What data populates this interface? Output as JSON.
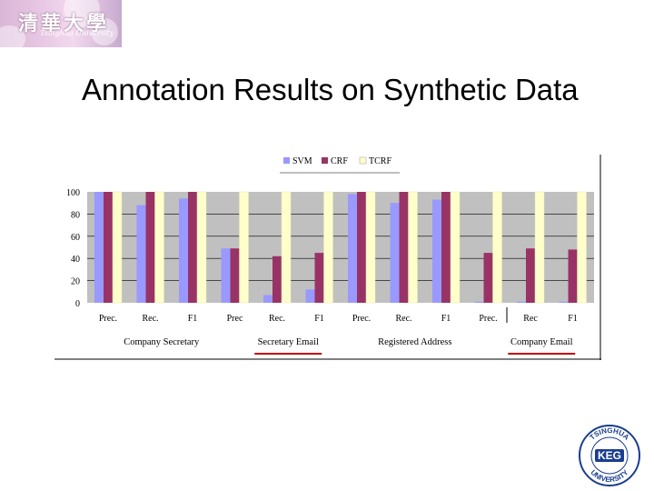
{
  "banner": {
    "name": "清華大學",
    "subtitle": "Tsinghua University"
  },
  "title": "Annotation Results on Synthetic Data",
  "logo": {
    "top_text": "TSINGHUA",
    "center_text": "KEG",
    "bottom_text": "UNIVERSITY"
  },
  "colors": {
    "svm": "#9999ff",
    "crf": "#993366",
    "tcrf": "#ffffcc",
    "plot_bg": "#c0c0c0",
    "underline": "#c00000"
  },
  "chart_data": {
    "type": "bar",
    "title": "",
    "xlabel": "",
    "ylabel": "",
    "ylim": [
      0,
      100
    ],
    "yticks": [
      "0",
      "20",
      "40",
      "60",
      "80",
      "100"
    ],
    "legend_position": "top-center",
    "categories": [
      "Prec.",
      "Rec.",
      "F1",
      "Prec",
      "Rec.",
      "F1",
      "Prec.",
      "Rec.",
      "F1",
      "Prec.",
      "Rec",
      "F1"
    ],
    "groups": [
      {
        "label": "Company  Secretary",
        "underlined": false
      },
      {
        "label": "Secretary  Email",
        "underlined": true
      },
      {
        "label": "Registered  Address",
        "underlined": false
      },
      {
        "label": "Company  Email",
        "underlined": true
      }
    ],
    "series": [
      {
        "name": "SVM",
        "values": [
          100,
          88,
          94,
          49,
          7,
          12,
          98,
          90,
          93,
          1,
          1,
          1
        ]
      },
      {
        "name": "CRF",
        "values": [
          100,
          100,
          100,
          49,
          42,
          45,
          100,
          100,
          100,
          45,
          49,
          48
        ]
      },
      {
        "name": "TCRF",
        "values": [
          100,
          100,
          100,
          100,
          100,
          100,
          100,
          100,
          100,
          100,
          100,
          100
        ]
      }
    ]
  }
}
